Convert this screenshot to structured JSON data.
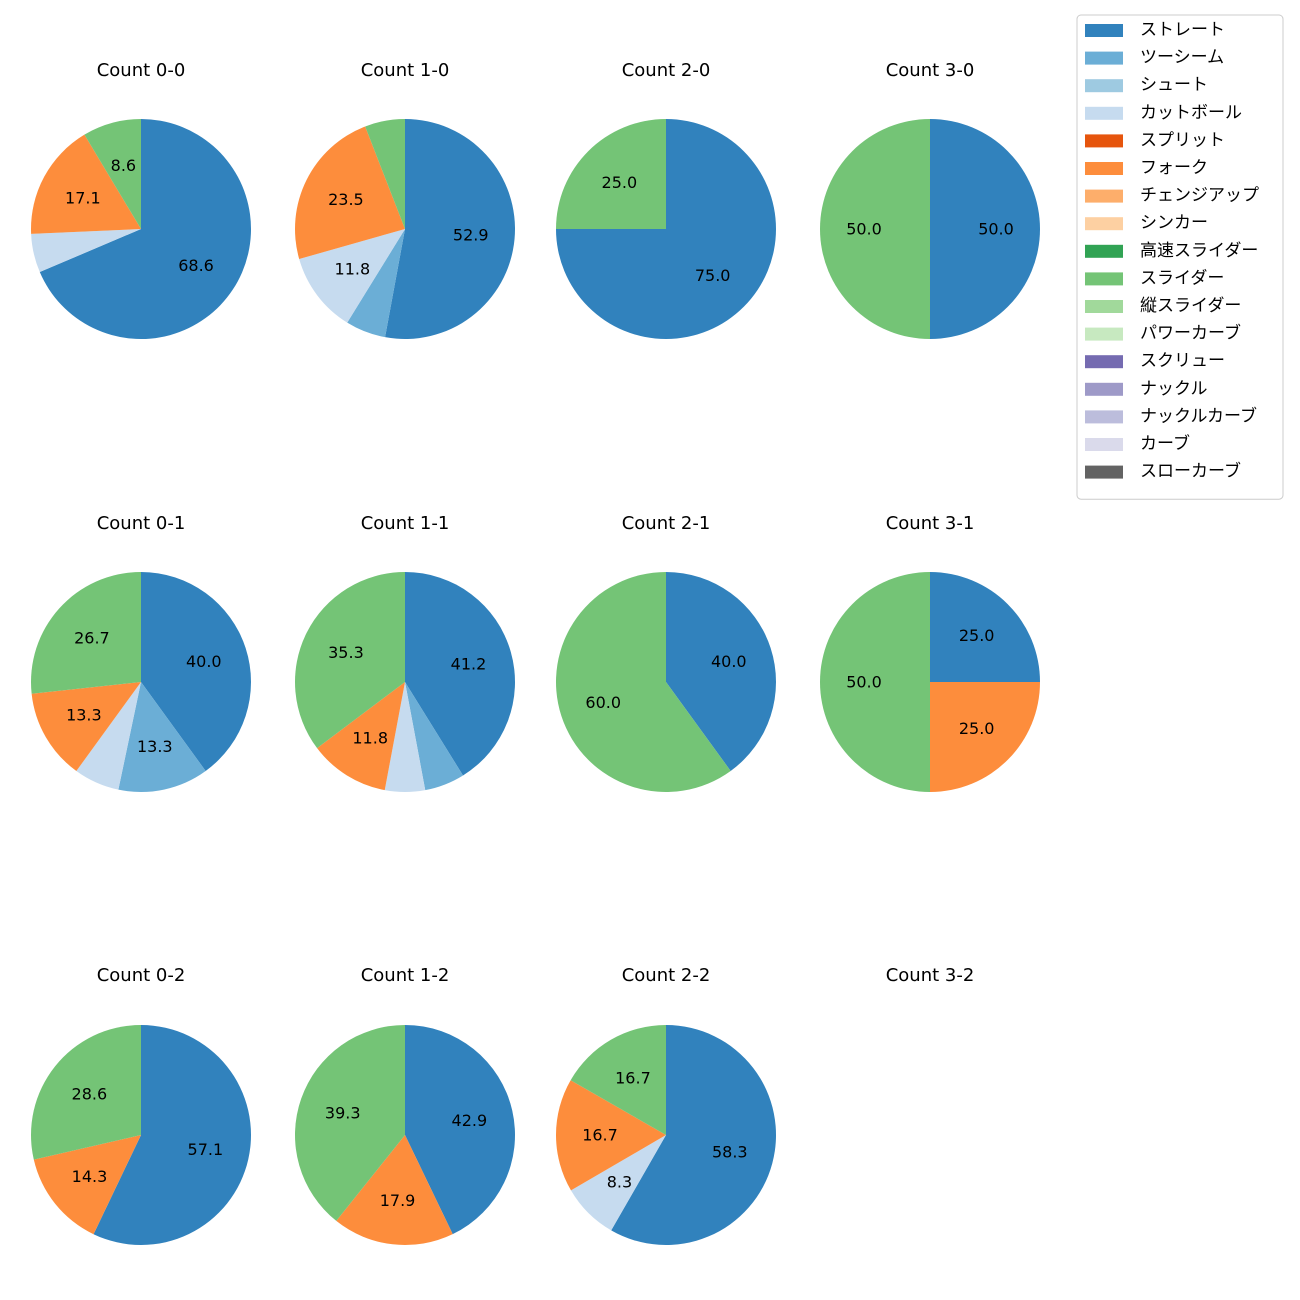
{
  "pitch_types": [
    {
      "name": "ストレート",
      "color": "#3182bd"
    },
    {
      "name": "ツーシーム",
      "color": "#6baed6"
    },
    {
      "name": "シュート",
      "color": "#9ecae1"
    },
    {
      "name": "カットボール",
      "color": "#c6dbef"
    },
    {
      "name": "スプリット",
      "color": "#e6550d"
    },
    {
      "name": "フォーク",
      "color": "#fd8d3c"
    },
    {
      "name": "チェンジアップ",
      "color": "#fdae6b"
    },
    {
      "name": "シンカー",
      "color": "#fdd0a2"
    },
    {
      "name": "高速スライダー",
      "color": "#31a354"
    },
    {
      "name": "スライダー",
      "color": "#74c476"
    },
    {
      "name": "縦スライダー",
      "color": "#a1d99b"
    },
    {
      "name": "パワーカーブ",
      "color": "#c7e9c0"
    },
    {
      "name": "スクリュー",
      "color": "#756bb1"
    },
    {
      "name": "ナックル",
      "color": "#9e9ac8"
    },
    {
      "name": "ナックルカーブ",
      "color": "#bcbddc"
    },
    {
      "name": "カーブ",
      "color": "#dadaeb"
    },
    {
      "name": "スローカーブ",
      "color": "#636363"
    }
  ],
  "chart_data": [
    {
      "type": "pie",
      "title": "Count 0-0",
      "slices": [
        {
          "label": "ストレート",
          "value": 68.6,
          "display": "68.6"
        },
        {
          "label": "カットボール",
          "value": 5.7,
          "display": ""
        },
        {
          "label": "フォーク",
          "value": 17.1,
          "display": "17.1"
        },
        {
          "label": "スライダー",
          "value": 8.6,
          "display": "8.6"
        }
      ]
    },
    {
      "type": "pie",
      "title": "Count 1-0",
      "slices": [
        {
          "label": "ストレート",
          "value": 52.9,
          "display": "52.9"
        },
        {
          "label": "ツーシーム",
          "value": 5.9,
          "display": ""
        },
        {
          "label": "カットボール",
          "value": 11.8,
          "display": "11.8"
        },
        {
          "label": "フォーク",
          "value": 23.5,
          "display": "23.5"
        },
        {
          "label": "スライダー",
          "value": 5.9,
          "display": ""
        }
      ]
    },
    {
      "type": "pie",
      "title": "Count 2-0",
      "slices": [
        {
          "label": "ストレート",
          "value": 75.0,
          "display": "75.0"
        },
        {
          "label": "スライダー",
          "value": 25.0,
          "display": "25.0"
        }
      ]
    },
    {
      "type": "pie",
      "title": "Count 3-0",
      "slices": [
        {
          "label": "ストレート",
          "value": 50.0,
          "display": "50.0"
        },
        {
          "label": "スライダー",
          "value": 50.0,
          "display": "50.0"
        }
      ]
    },
    {
      "type": "pie",
      "title": "Count 0-1",
      "slices": [
        {
          "label": "ストレート",
          "value": 40.0,
          "display": "40.0"
        },
        {
          "label": "ツーシーム",
          "value": 13.3,
          "display": "13.3"
        },
        {
          "label": "カットボール",
          "value": 6.7,
          "display": ""
        },
        {
          "label": "フォーク",
          "value": 13.3,
          "display": "13.3"
        },
        {
          "label": "スライダー",
          "value": 26.7,
          "display": "26.7"
        }
      ]
    },
    {
      "type": "pie",
      "title": "Count 1-1",
      "slices": [
        {
          "label": "ストレート",
          "value": 41.2,
          "display": "41.2"
        },
        {
          "label": "ツーシーム",
          "value": 5.9,
          "display": ""
        },
        {
          "label": "カットボール",
          "value": 5.9,
          "display": ""
        },
        {
          "label": "フォーク",
          "value": 11.8,
          "display": "11.8"
        },
        {
          "label": "スライダー",
          "value": 35.3,
          "display": "35.3"
        }
      ]
    },
    {
      "type": "pie",
      "title": "Count 2-1",
      "slices": [
        {
          "label": "ストレート",
          "value": 40.0,
          "display": "40.0"
        },
        {
          "label": "スライダー",
          "value": 60.0,
          "display": "60.0"
        }
      ]
    },
    {
      "type": "pie",
      "title": "Count 3-1",
      "slices": [
        {
          "label": "ストレート",
          "value": 25.0,
          "display": "25.0"
        },
        {
          "label": "フォーク",
          "value": 25.0,
          "display": "25.0"
        },
        {
          "label": "スライダー",
          "value": 50.0,
          "display": "50.0"
        }
      ]
    },
    {
      "type": "pie",
      "title": "Count 0-2",
      "slices": [
        {
          "label": "ストレート",
          "value": 57.1,
          "display": "57.1"
        },
        {
          "label": "フォーク",
          "value": 14.3,
          "display": "14.3"
        },
        {
          "label": "スライダー",
          "value": 28.6,
          "display": "28.6"
        }
      ]
    },
    {
      "type": "pie",
      "title": "Count 1-2",
      "slices": [
        {
          "label": "ストレート",
          "value": 42.9,
          "display": "42.9"
        },
        {
          "label": "フォーク",
          "value": 17.9,
          "display": "17.9"
        },
        {
          "label": "スライダー",
          "value": 39.3,
          "display": "39.3"
        }
      ]
    },
    {
      "type": "pie",
      "title": "Count 2-2",
      "slices": [
        {
          "label": "ストレート",
          "value": 58.3,
          "display": "58.3"
        },
        {
          "label": "カットボール",
          "value": 8.3,
          "display": "8.3"
        },
        {
          "label": "フォーク",
          "value": 16.7,
          "display": "16.7"
        },
        {
          "label": "スライダー",
          "value": 16.7,
          "display": "16.7"
        }
      ]
    },
    {
      "type": "pie",
      "title": "Count 3-2",
      "slices": []
    }
  ]
}
